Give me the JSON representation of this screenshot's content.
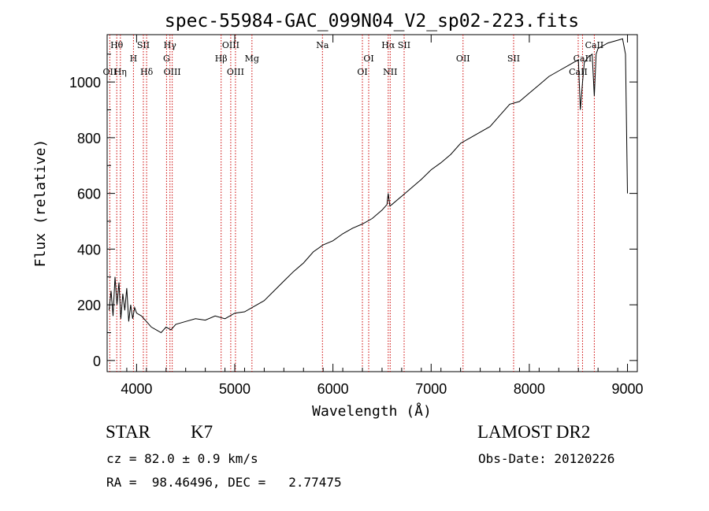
{
  "chart_data": {
    "type": "line",
    "title": "spec-55984-GAC_099N04_V2_sp02-223.fits",
    "xlabel": "Wavelength (Å)",
    "ylabel": "Flux (relative)",
    "xlim": [
      3700,
      9100
    ],
    "ylim": [
      -40,
      1170
    ],
    "grid": false,
    "x_ticks": [
      4000,
      5000,
      6000,
      7000,
      8000,
      9000
    ],
    "y_ticks": [
      0,
      200,
      400,
      600,
      800,
      1000
    ],
    "line_color": "#000000",
    "marker_color": "#cc0000",
    "series": [
      {
        "x": [
          3720,
          3740,
          3760,
          3780,
          3800,
          3820,
          3840,
          3860,
          3880,
          3900,
          3920,
          3940,
          3960,
          3980,
          4000,
          4050,
          4100,
          4150,
          4200,
          4250,
          4300,
          4350,
          4400,
          4500,
          4600,
          4700,
          4800,
          4900,
          5000,
          5100,
          5200,
          5300,
          5400,
          5500,
          5600,
          5700,
          5800,
          5900,
          6000,
          6100,
          6200,
          6300,
          6400,
          6500,
          6550,
          6563,
          6580,
          6600,
          6700,
          6800,
          6900,
          7000,
          7100,
          7200,
          7300,
          7400,
          7500,
          7600,
          7700,
          7800,
          7900,
          8000,
          8100,
          8200,
          8300,
          8400,
          8500,
          8520,
          8542,
          8560,
          8600,
          8640,
          8662,
          8680,
          8700,
          8800,
          8900,
          8950,
          8980,
          9000
        ],
        "y": [
          180,
          250,
          160,
          300,
          200,
          280,
          150,
          240,
          180,
          260,
          140,
          200,
          150,
          190,
          170,
          160,
          140,
          120,
          110,
          100,
          120,
          110,
          130,
          140,
          150,
          145,
          160,
          150,
          170,
          175,
          195,
          215,
          250,
          285,
          320,
          350,
          390,
          415,
          430,
          455,
          475,
          490,
          510,
          540,
          560,
          600,
          555,
          560,
          590,
          620,
          650,
          685,
          710,
          740,
          780,
          800,
          820,
          840,
          880,
          920,
          930,
          960,
          990,
          1020,
          1040,
          1060,
          1080,
          900,
          1000,
          1070,
          1090,
          1100,
          950,
          1100,
          1120,
          1140,
          1150,
          1155,
          1100,
          600
        ]
      }
    ],
    "line_markers": [
      {
        "label": "Hθ",
        "wl": 3798,
        "row": 1
      },
      {
        "label": "OII",
        "wl": 3727,
        "row": 3
      },
      {
        "label": "Hη",
        "wl": 3835,
        "row": 3
      },
      {
        "label": "SII",
        "wl": 4069,
        "row": 1
      },
      {
        "label": "H",
        "wl": 3968,
        "row": 2
      },
      {
        "label": "Hδ",
        "wl": 4102,
        "row": 3
      },
      {
        "label": "Hγ",
        "wl": 4340,
        "row": 1
      },
      {
        "label": "G",
        "wl": 4305,
        "row": 2
      },
      {
        "label": "OIII",
        "wl": 4363,
        "row": 3
      },
      {
        "label": "OIII",
        "wl": 4959,
        "row": 1
      },
      {
        "label": "Hβ",
        "wl": 4861,
        "row": 2
      },
      {
        "label": "OIII",
        "wl": 5007,
        "row": 3
      },
      {
        "label": "Mg",
        "wl": 5175,
        "row": 2
      },
      {
        "label": "Na",
        "wl": 5893,
        "row": 1
      },
      {
        "label": "OI",
        "wl": 6364,
        "row": 2
      },
      {
        "label": "OI",
        "wl": 6300,
        "row": 3
      },
      {
        "label": "Hα",
        "wl": 6563,
        "row": 1
      },
      {
        "label": "NII",
        "wl": 6583,
        "row": 3
      },
      {
        "label": "SII",
        "wl": 6725,
        "row": 1
      },
      {
        "label": "OII",
        "wl": 7325,
        "row": 2
      },
      {
        "label": "SII",
        "wl": 7840,
        "row": 2
      },
      {
        "label": "CaII",
        "wl": 8662,
        "row": 1
      },
      {
        "label": "CaII",
        "wl": 8542,
        "row": 2
      },
      {
        "label": "CaII",
        "wl": 8498,
        "row": 3
      }
    ]
  },
  "info": {
    "class_label": "STAR",
    "subclass": "K7",
    "survey": "LAMOST DR2",
    "cz": "cz = 82.0 ± 0.9 km/s",
    "obs_date": "Obs-Date: 20120226",
    "coords": "RA =  98.46496, DEC =   2.77475"
  }
}
